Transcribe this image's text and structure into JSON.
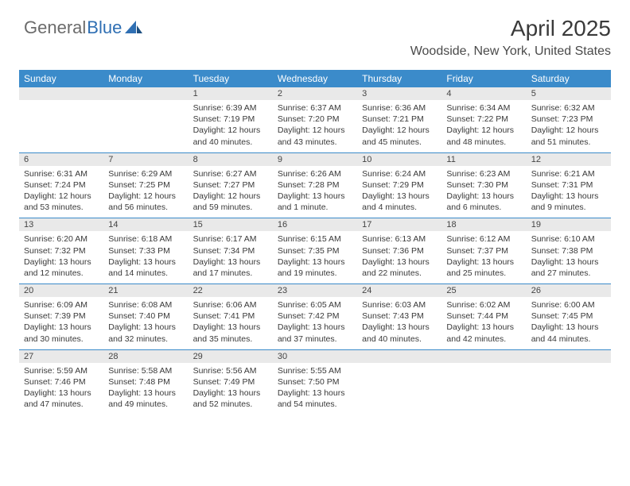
{
  "logo": {
    "part1": "General",
    "part2": "Blue"
  },
  "header": {
    "month_title": "April 2025",
    "location": "Woodside, New York, United States"
  },
  "calendar": {
    "type": "table",
    "header_bg": "#3b8bca",
    "header_text_color": "#ffffff",
    "daynum_bg": "#e9e9e9",
    "row_divider_color": "#3b8bca",
    "days_of_week": [
      "Sunday",
      "Monday",
      "Tuesday",
      "Wednesday",
      "Thursday",
      "Friday",
      "Saturday"
    ],
    "weeks": [
      [
        {
          "num": "",
          "sunrise": "",
          "sunset": "",
          "daylight": ""
        },
        {
          "num": "",
          "sunrise": "",
          "sunset": "",
          "daylight": ""
        },
        {
          "num": "1",
          "sunrise": "Sunrise: 6:39 AM",
          "sunset": "Sunset: 7:19 PM",
          "daylight": "Daylight: 12 hours and 40 minutes."
        },
        {
          "num": "2",
          "sunrise": "Sunrise: 6:37 AM",
          "sunset": "Sunset: 7:20 PM",
          "daylight": "Daylight: 12 hours and 43 minutes."
        },
        {
          "num": "3",
          "sunrise": "Sunrise: 6:36 AM",
          "sunset": "Sunset: 7:21 PM",
          "daylight": "Daylight: 12 hours and 45 minutes."
        },
        {
          "num": "4",
          "sunrise": "Sunrise: 6:34 AM",
          "sunset": "Sunset: 7:22 PM",
          "daylight": "Daylight: 12 hours and 48 minutes."
        },
        {
          "num": "5",
          "sunrise": "Sunrise: 6:32 AM",
          "sunset": "Sunset: 7:23 PM",
          "daylight": "Daylight: 12 hours and 51 minutes."
        }
      ],
      [
        {
          "num": "6",
          "sunrise": "Sunrise: 6:31 AM",
          "sunset": "Sunset: 7:24 PM",
          "daylight": "Daylight: 12 hours and 53 minutes."
        },
        {
          "num": "7",
          "sunrise": "Sunrise: 6:29 AM",
          "sunset": "Sunset: 7:25 PM",
          "daylight": "Daylight: 12 hours and 56 minutes."
        },
        {
          "num": "8",
          "sunrise": "Sunrise: 6:27 AM",
          "sunset": "Sunset: 7:27 PM",
          "daylight": "Daylight: 12 hours and 59 minutes."
        },
        {
          "num": "9",
          "sunrise": "Sunrise: 6:26 AM",
          "sunset": "Sunset: 7:28 PM",
          "daylight": "Daylight: 13 hours and 1 minute."
        },
        {
          "num": "10",
          "sunrise": "Sunrise: 6:24 AM",
          "sunset": "Sunset: 7:29 PM",
          "daylight": "Daylight: 13 hours and 4 minutes."
        },
        {
          "num": "11",
          "sunrise": "Sunrise: 6:23 AM",
          "sunset": "Sunset: 7:30 PM",
          "daylight": "Daylight: 13 hours and 6 minutes."
        },
        {
          "num": "12",
          "sunrise": "Sunrise: 6:21 AM",
          "sunset": "Sunset: 7:31 PM",
          "daylight": "Daylight: 13 hours and 9 minutes."
        }
      ],
      [
        {
          "num": "13",
          "sunrise": "Sunrise: 6:20 AM",
          "sunset": "Sunset: 7:32 PM",
          "daylight": "Daylight: 13 hours and 12 minutes."
        },
        {
          "num": "14",
          "sunrise": "Sunrise: 6:18 AM",
          "sunset": "Sunset: 7:33 PM",
          "daylight": "Daylight: 13 hours and 14 minutes."
        },
        {
          "num": "15",
          "sunrise": "Sunrise: 6:17 AM",
          "sunset": "Sunset: 7:34 PM",
          "daylight": "Daylight: 13 hours and 17 minutes."
        },
        {
          "num": "16",
          "sunrise": "Sunrise: 6:15 AM",
          "sunset": "Sunset: 7:35 PM",
          "daylight": "Daylight: 13 hours and 19 minutes."
        },
        {
          "num": "17",
          "sunrise": "Sunrise: 6:13 AM",
          "sunset": "Sunset: 7:36 PM",
          "daylight": "Daylight: 13 hours and 22 minutes."
        },
        {
          "num": "18",
          "sunrise": "Sunrise: 6:12 AM",
          "sunset": "Sunset: 7:37 PM",
          "daylight": "Daylight: 13 hours and 25 minutes."
        },
        {
          "num": "19",
          "sunrise": "Sunrise: 6:10 AM",
          "sunset": "Sunset: 7:38 PM",
          "daylight": "Daylight: 13 hours and 27 minutes."
        }
      ],
      [
        {
          "num": "20",
          "sunrise": "Sunrise: 6:09 AM",
          "sunset": "Sunset: 7:39 PM",
          "daylight": "Daylight: 13 hours and 30 minutes."
        },
        {
          "num": "21",
          "sunrise": "Sunrise: 6:08 AM",
          "sunset": "Sunset: 7:40 PM",
          "daylight": "Daylight: 13 hours and 32 minutes."
        },
        {
          "num": "22",
          "sunrise": "Sunrise: 6:06 AM",
          "sunset": "Sunset: 7:41 PM",
          "daylight": "Daylight: 13 hours and 35 minutes."
        },
        {
          "num": "23",
          "sunrise": "Sunrise: 6:05 AM",
          "sunset": "Sunset: 7:42 PM",
          "daylight": "Daylight: 13 hours and 37 minutes."
        },
        {
          "num": "24",
          "sunrise": "Sunrise: 6:03 AM",
          "sunset": "Sunset: 7:43 PM",
          "daylight": "Daylight: 13 hours and 40 minutes."
        },
        {
          "num": "25",
          "sunrise": "Sunrise: 6:02 AM",
          "sunset": "Sunset: 7:44 PM",
          "daylight": "Daylight: 13 hours and 42 minutes."
        },
        {
          "num": "26",
          "sunrise": "Sunrise: 6:00 AM",
          "sunset": "Sunset: 7:45 PM",
          "daylight": "Daylight: 13 hours and 44 minutes."
        }
      ],
      [
        {
          "num": "27",
          "sunrise": "Sunrise: 5:59 AM",
          "sunset": "Sunset: 7:46 PM",
          "daylight": "Daylight: 13 hours and 47 minutes."
        },
        {
          "num": "28",
          "sunrise": "Sunrise: 5:58 AM",
          "sunset": "Sunset: 7:48 PM",
          "daylight": "Daylight: 13 hours and 49 minutes."
        },
        {
          "num": "29",
          "sunrise": "Sunrise: 5:56 AM",
          "sunset": "Sunset: 7:49 PM",
          "daylight": "Daylight: 13 hours and 52 minutes."
        },
        {
          "num": "30",
          "sunrise": "Sunrise: 5:55 AM",
          "sunset": "Sunset: 7:50 PM",
          "daylight": "Daylight: 13 hours and 54 minutes."
        },
        {
          "num": "",
          "sunrise": "",
          "sunset": "",
          "daylight": ""
        },
        {
          "num": "",
          "sunrise": "",
          "sunset": "",
          "daylight": ""
        },
        {
          "num": "",
          "sunrise": "",
          "sunset": "",
          "daylight": ""
        }
      ]
    ]
  }
}
